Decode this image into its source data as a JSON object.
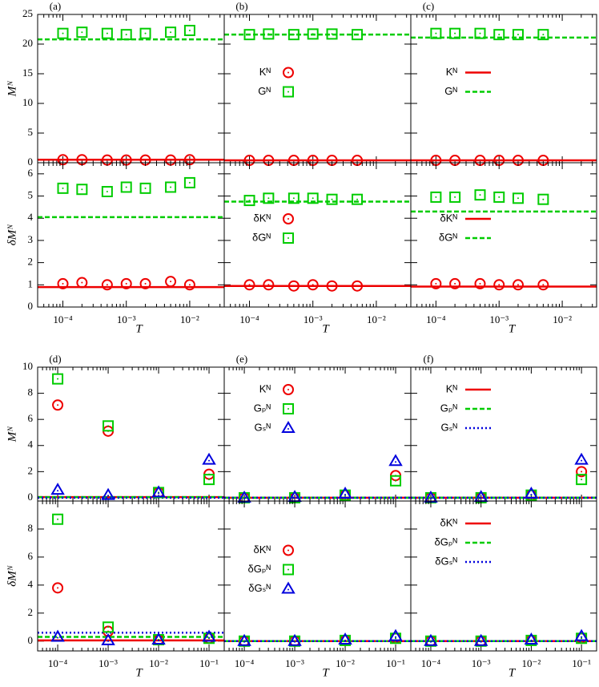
{
  "chart_data": [
    {
      "type": "scatter",
      "label": "(a)",
      "xlog": true,
      "xlim": [
        4e-05,
        0.035
      ],
      "xticks": [
        0.0001,
        0.001,
        0.01
      ],
      "xtick_labels": false,
      "ylim": [
        0,
        25
      ],
      "yticks": [
        0,
        5,
        10,
        15,
        20,
        25
      ],
      "ytick_labels": true,
      "ylabel": "Mᴺ",
      "x": [
        0.0001,
        0.0002,
        0.0005,
        0.001,
        0.002,
        0.005,
        0.01
      ],
      "series": [
        {
          "color": "#ee0000",
          "marker": "circle",
          "values": [
            0.5,
            0.5,
            0.45,
            0.45,
            0.45,
            0.45,
            0.5
          ]
        },
        {
          "color": "#00cc00",
          "marker": "square",
          "values": [
            21.8,
            22.0,
            21.8,
            21.6,
            21.8,
            22.0,
            22.3
          ]
        }
      ],
      "fits": [
        {
          "color": "#ee0000",
          "dash": "solid",
          "value": 0.5
        },
        {
          "color": "#00cc00",
          "dash": "dashed",
          "value": 20.8
        }
      ]
    },
    {
      "type": "scatter",
      "label": "(b)",
      "xlog": true,
      "xlim": [
        4e-05,
        0.035
      ],
      "xticks": [
        0.0001,
        0.001,
        0.01
      ],
      "xtick_labels": false,
      "ylim": [
        0,
        25
      ],
      "yticks": [
        0,
        5,
        10,
        15,
        20,
        25
      ],
      "ytick_labels": false,
      "legend": "center left",
      "x": [
        0.0001,
        0.0002,
        0.0005,
        0.001,
        0.002,
        0.005
      ],
      "series": [
        {
          "name": "Kᴺ",
          "color": "#ee0000",
          "marker": "circle",
          "values": [
            0.4,
            0.4,
            0.4,
            0.4,
            0.4,
            0.4
          ]
        },
        {
          "name": "Gᴺ",
          "color": "#00cc00",
          "marker": "square",
          "values": [
            21.6,
            21.7,
            21.6,
            21.7,
            21.7,
            21.6
          ]
        }
      ],
      "fits": [
        {
          "color": "#ee0000",
          "dash": "solid",
          "value": 0.4
        },
        {
          "color": "#00cc00",
          "dash": "dashed",
          "value": 21.6
        }
      ]
    },
    {
      "type": "scatter",
      "label": "(c)",
      "xlog": true,
      "xlim": [
        4e-05,
        0.035
      ],
      "xticks": [
        0.0001,
        0.001,
        0.01
      ],
      "xtick_labels": false,
      "ylim": [
        0,
        25
      ],
      "yticks": [
        0,
        5,
        10,
        15,
        20,
        25
      ],
      "ytick_labels": false,
      "legend": "center left",
      "x": [
        0.0001,
        0.0002,
        0.0005,
        0.001,
        0.002,
        0.005
      ],
      "series": [
        {
          "color": "#ee0000",
          "marker": "circle",
          "values": [
            0.4,
            0.4,
            0.4,
            0.4,
            0.4,
            0.4
          ]
        },
        {
          "color": "#00cc00",
          "marker": "square",
          "values": [
            21.8,
            21.8,
            21.8,
            21.6,
            21.6,
            21.6
          ]
        }
      ],
      "fits": [
        {
          "name": "Kᴺ",
          "color": "#ee0000",
          "dash": "solid",
          "value": 0.4
        },
        {
          "name": "Gᴺ",
          "color": "#00cc00",
          "dash": "dashed",
          "value": 21.1
        }
      ]
    },
    {
      "type": "scatter",
      "xlog": true,
      "xlim": [
        4e-05,
        0.035
      ],
      "xticks": [
        {
          "value": 0.0001,
          "label": "10⁻⁴"
        },
        {
          "value": 0.001,
          "label": "10⁻³"
        },
        {
          "value": 0.01,
          "label": "10⁻²"
        }
      ],
      "xtick_labels": true,
      "xlabel": "T",
      "ylim": [
        0,
        6.5
      ],
      "yticks": [
        0,
        1,
        2,
        3,
        4,
        5,
        6
      ],
      "ytick_labels": true,
      "ylabel": "δMᴺ",
      "x": [
        0.0001,
        0.0002,
        0.0005,
        0.001,
        0.002,
        0.005,
        0.01
      ],
      "series": [
        {
          "color": "#ee0000",
          "marker": "circle",
          "values": [
            1.05,
            1.1,
            1.0,
            1.05,
            1.05,
            1.15,
            1.0
          ]
        },
        {
          "color": "#00cc00",
          "marker": "square",
          "values": [
            5.35,
            5.3,
            5.2,
            5.4,
            5.35,
            5.4,
            5.6
          ]
        }
      ],
      "fits": [
        {
          "color": "#ee0000",
          "dash": "solid",
          "value": 0.9
        },
        {
          "color": "#00cc00",
          "dash": "dashed",
          "value": 4.05
        }
      ]
    },
    {
      "type": "scatter",
      "xlog": true,
      "xlim": [
        4e-05,
        0.035
      ],
      "xticks": [
        {
          "value": 0.0001,
          "label": "10⁻⁴"
        },
        {
          "value": 0.001,
          "label": "10⁻³"
        },
        {
          "value": 0.01,
          "label": "10⁻²"
        }
      ],
      "xtick_labels": true,
      "xlabel": "T",
      "ylim": [
        0,
        6.5
      ],
      "yticks": [
        0,
        1,
        2,
        3,
        4,
        5,
        6
      ],
      "ytick_labels": false,
      "legend": "center left",
      "x": [
        0.0001,
        0.0002,
        0.0005,
        0.001,
        0.002,
        0.005
      ],
      "series": [
        {
          "name": "δKᴺ",
          "color": "#ee0000",
          "marker": "circle",
          "values": [
            1.0,
            1.0,
            0.95,
            1.0,
            0.95,
            0.95
          ]
        },
        {
          "name": "δGᴺ",
          "color": "#00cc00",
          "marker": "square",
          "values": [
            4.8,
            4.9,
            4.9,
            4.9,
            4.85,
            4.85
          ]
        }
      ],
      "fits": [
        {
          "color": "#ee0000",
          "dash": "solid",
          "value": 0.95
        },
        {
          "color": "#00cc00",
          "dash": "dashed",
          "value": 4.75
        }
      ]
    },
    {
      "type": "scatter",
      "xlog": true,
      "xlim": [
        4e-05,
        0.035
      ],
      "xticks": [
        {
          "value": 0.0001,
          "label": "10⁻⁴"
        },
        {
          "value": 0.001,
          "label": "10⁻³"
        },
        {
          "value": 0.01,
          "label": "10⁻²"
        }
      ],
      "xtick_labels": true,
      "xlabel": "T",
      "ylim": [
        0,
        6.5
      ],
      "yticks": [
        0,
        1,
        2,
        3,
        4,
        5,
        6
      ],
      "ytick_labels": false,
      "legend": "center left",
      "x": [
        0.0001,
        0.0002,
        0.0005,
        0.001,
        0.002,
        0.005
      ],
      "series": [
        {
          "color": "#ee0000",
          "marker": "circle",
          "values": [
            1.05,
            1.05,
            1.05,
            1.0,
            1.0,
            1.0
          ]
        },
        {
          "color": "#00cc00",
          "marker": "square",
          "values": [
            4.95,
            4.95,
            5.05,
            4.95,
            4.9,
            4.85
          ]
        }
      ],
      "fits": [
        {
          "name": "δKᴺ",
          "color": "#ee0000",
          "dash": "solid",
          "value": 0.92
        },
        {
          "name": "δGᴺ",
          "color": "#00cc00",
          "dash": "dashed",
          "value": 4.3
        }
      ]
    },
    {
      "type": "scatter",
      "label": "(d)",
      "xlog": true,
      "xlim": [
        4e-05,
        0.2
      ],
      "xticks": [
        0.0001,
        0.001,
        0.01,
        0.1
      ],
      "xtick_labels": false,
      "ylim": [
        -0.25,
        10
      ],
      "yticks": [
        0,
        2,
        4,
        6,
        8,
        10
      ],
      "ytick_labels": true,
      "ylabel": "Mᴺ",
      "x": [
        0.0001,
        0.001,
        0.01,
        0.1
      ],
      "series": [
        {
          "color": "#ee0000",
          "marker": "circle",
          "values": [
            7.1,
            5.1,
            0.4,
            1.8
          ]
        },
        {
          "color": "#00cc00",
          "marker": "square",
          "values": [
            9.1,
            5.5,
            0.4,
            1.4
          ]
        },
        {
          "color": "#0000dd",
          "marker": "triangle",
          "values": [
            0.6,
            0.2,
            0.4,
            2.9
          ]
        }
      ],
      "fits": [
        {
          "color": "#ee0000",
          "dash": "solid",
          "value": 0.05
        },
        {
          "color": "#00cc00",
          "dash": "dashed",
          "value": 0.05
        },
        {
          "color": "#0000dd",
          "dash": "dotted",
          "value": 0.0
        }
      ]
    },
    {
      "type": "scatter",
      "label": "(e)",
      "xlog": true,
      "xlim": [
        4e-05,
        0.2
      ],
      "xticks": [
        0.0001,
        0.001,
        0.01,
        0.1
      ],
      "xtick_labels": false,
      "ylim": [
        -0.25,
        10
      ],
      "yticks": [
        0,
        2,
        4,
        6,
        8,
        10
      ],
      "ytick_labels": false,
      "legend": "upper left",
      "x": [
        0.0001,
        0.001,
        0.01,
        0.1
      ],
      "series": [
        {
          "name": "Kᴺ",
          "color": "#ee0000",
          "marker": "circle",
          "values": [
            0.0,
            0.0,
            0.2,
            1.7
          ]
        },
        {
          "name": "Gₚᴺ",
          "color": "#00cc00",
          "marker": "square",
          "values": [
            0.0,
            0.0,
            0.2,
            1.3
          ]
        },
        {
          "name": "Gₛᴺ",
          "color": "#0000dd",
          "marker": "triangle",
          "values": [
            0.0,
            0.05,
            0.3,
            2.8
          ]
        }
      ],
      "fits": [
        {
          "color": "#ee0000",
          "dash": "solid",
          "value": 0.0
        },
        {
          "color": "#00cc00",
          "dash": "dashed",
          "value": 0.0
        },
        {
          "color": "#0000dd",
          "dash": "dotted",
          "value": 0.0
        }
      ]
    },
    {
      "type": "scatter",
      "label": "(f)",
      "xlog": true,
      "xlim": [
        4e-05,
        0.2
      ],
      "xticks": [
        0.0001,
        0.001,
        0.01,
        0.1
      ],
      "xtick_labels": false,
      "ylim": [
        -0.25,
        10
      ],
      "yticks": [
        0,
        2,
        4,
        6,
        8,
        10
      ],
      "ytick_labels": false,
      "legend": "upper left",
      "x": [
        0.0001,
        0.001,
        0.01,
        0.1
      ],
      "series": [
        {
          "color": "#ee0000",
          "marker": "circle",
          "values": [
            0.0,
            0.0,
            0.2,
            2.0
          ]
        },
        {
          "color": "#00cc00",
          "marker": "square",
          "values": [
            0.0,
            0.0,
            0.2,
            1.4
          ]
        },
        {
          "color": "#0000dd",
          "marker": "triangle",
          "values": [
            0.0,
            0.05,
            0.3,
            2.9
          ]
        }
      ],
      "fits": [
        {
          "name": "Kᴺ",
          "color": "#ee0000",
          "dash": "solid",
          "value": 0.0
        },
        {
          "name": "Gₚᴺ",
          "color": "#00cc00",
          "dash": "dashed",
          "value": 0.0
        },
        {
          "name": "Gₛᴺ",
          "color": "#0000dd",
          "dash": "dotted",
          "value": 0.0
        }
      ]
    },
    {
      "type": "scatter",
      "xlog": true,
      "xlim": [
        4e-05,
        0.2
      ],
      "xticks": [
        {
          "value": 0.0001,
          "label": "10⁻⁴"
        },
        {
          "value": 0.001,
          "label": "10⁻³"
        },
        {
          "value": 0.01,
          "label": "10⁻²"
        },
        {
          "value": 0.1,
          "label": "10⁻¹"
        }
      ],
      "xtick_labels": true,
      "xlabel": "T",
      "ylim": [
        -0.7,
        10
      ],
      "yticks": [
        0,
        2,
        4,
        6,
        8
      ],
      "ytick_labels": true,
      "ylabel": "δMᴺ",
      "x": [
        0.0001,
        0.001,
        0.01,
        0.1
      ],
      "series": [
        {
          "color": "#ee0000",
          "marker": "circle",
          "values": [
            3.8,
            0.7,
            0.1,
            0.2
          ]
        },
        {
          "color": "#00cc00",
          "marker": "square",
          "values": [
            8.7,
            1.0,
            0.1,
            0.2
          ]
        },
        {
          "color": "#0000dd",
          "marker": "triangle",
          "values": [
            0.3,
            0.05,
            0.1,
            0.3
          ]
        }
      ],
      "fits": [
        {
          "color": "#ee0000",
          "dash": "solid",
          "value": 0.05
        },
        {
          "color": "#00cc00",
          "dash": "dashed",
          "value": 0.3
        },
        {
          "color": "#0000dd",
          "dash": "dotted",
          "value": 0.6
        }
      ]
    },
    {
      "type": "scatter",
      "xlog": true,
      "xlim": [
        4e-05,
        0.2
      ],
      "xticks": [
        {
          "value": 0.0001,
          "label": "10⁻⁴"
        },
        {
          "value": 0.001,
          "label": "10⁻³"
        },
        {
          "value": 0.01,
          "label": "10⁻²"
        },
        {
          "value": 0.1,
          "label": "10⁻¹"
        }
      ],
      "xtick_labels": true,
      "xlabel": "T",
      "ylim": [
        -0.7,
        10
      ],
      "yticks": [
        0,
        2,
        4,
        6,
        8
      ],
      "ytick_labels": false,
      "legend": "center left",
      "x": [
        0.0001,
        0.001,
        0.01,
        0.1
      ],
      "series": [
        {
          "name": "δKᴺ",
          "color": "#ee0000",
          "marker": "circle",
          "values": [
            0.0,
            0.0,
            0.05,
            0.2
          ]
        },
        {
          "name": "δGₚᴺ",
          "color": "#00cc00",
          "marker": "square",
          "values": [
            0.0,
            0.0,
            0.05,
            0.2
          ]
        },
        {
          "name": "δGₛᴺ",
          "color": "#0000dd",
          "marker": "triangle",
          "values": [
            0.0,
            0.0,
            0.1,
            0.35
          ]
        }
      ],
      "fits": [
        {
          "color": "#ee0000",
          "dash": "solid",
          "value": 0.0
        },
        {
          "color": "#00cc00",
          "dash": "dashed",
          "value": 0.0
        },
        {
          "color": "#0000dd",
          "dash": "dotted",
          "value": 0.0
        }
      ]
    },
    {
      "type": "scatter",
      "xlog": true,
      "xlim": [
        4e-05,
        0.2
      ],
      "xticks": [
        {
          "value": 0.0001,
          "label": "10⁻⁴"
        },
        {
          "value": 0.001,
          "label": "10⁻³"
        },
        {
          "value": 0.01,
          "label": "10⁻²"
        },
        {
          "value": 0.1,
          "label": "10⁻¹"
        }
      ],
      "xtick_labels": true,
      "xlabel": "T",
      "ylim": [
        -0.7,
        10
      ],
      "yticks": [
        0,
        2,
        4,
        6,
        8
      ],
      "ytick_labels": false,
      "legend": "upper left",
      "x": [
        0.0001,
        0.001,
        0.01,
        0.1
      ],
      "series": [
        {
          "color": "#ee0000",
          "marker": "circle",
          "values": [
            0.0,
            0.0,
            0.05,
            0.2
          ]
        },
        {
          "color": "#00cc00",
          "marker": "square",
          "values": [
            0.0,
            0.0,
            0.05,
            0.2
          ]
        },
        {
          "color": "#0000dd",
          "marker": "triangle",
          "values": [
            0.0,
            0.0,
            0.1,
            0.35
          ]
        }
      ],
      "fits": [
        {
          "name": "δKᴺ",
          "color": "#ee0000",
          "dash": "solid",
          "value": 0.0
        },
        {
          "name": "δGₚᴺ",
          "color": "#00cc00",
          "dash": "dashed",
          "value": 0.0
        },
        {
          "name": "δGₛᴺ",
          "color": "#0000dd",
          "dash": "dotted",
          "value": 0.0
        }
      ]
    }
  ]
}
